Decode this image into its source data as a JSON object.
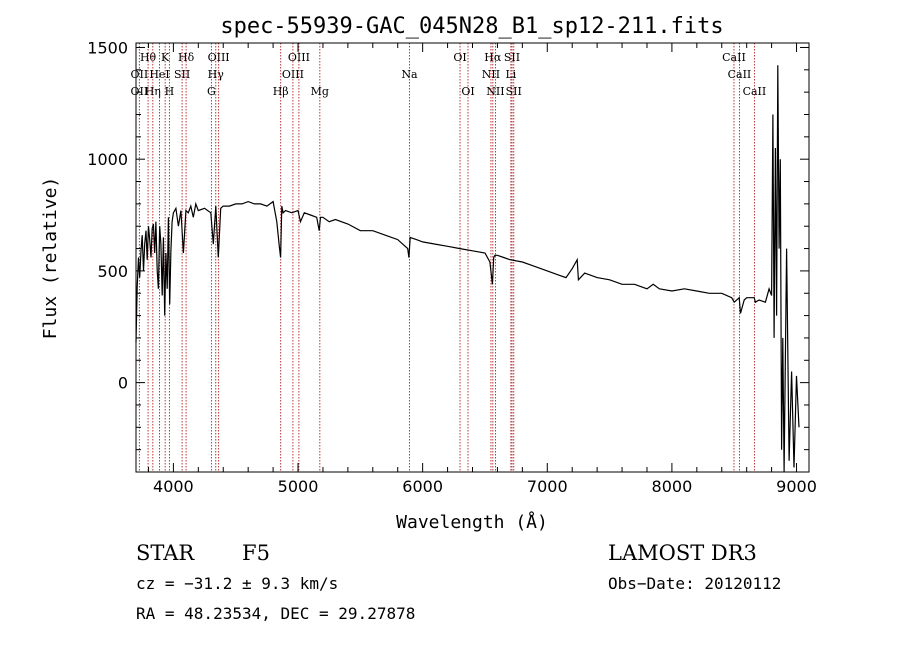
{
  "chart_data": {
    "type": "line",
    "title": "spec-55939-GAC_045N28_B1_sp12-211.fits",
    "xlabel": "Wavelength (Å)",
    "ylabel": "Flux (relative)",
    "xlim": [
      3700,
      9100
    ],
    "ylim": [
      -400,
      1520
    ],
    "xticks": [
      4000,
      5000,
      6000,
      7000,
      8000,
      9000
    ],
    "yticks": [
      0,
      500,
      1000,
      1500
    ],
    "grid": false,
    "series": [
      {
        "x": [
          3700,
          3710,
          3720,
          3730,
          3740,
          3750,
          3760,
          3770,
          3780,
          3790,
          3800,
          3810,
          3820,
          3830,
          3840,
          3850,
          3860,
          3870,
          3880,
          3890,
          3900,
          3910,
          3920,
          3930,
          3940,
          3950,
          3960,
          3970,
          3980,
          3990,
          4000,
          4020,
          4040,
          4060,
          4080,
          4100,
          4120,
          4140,
          4160,
          4180,
          4200,
          4250,
          4300,
          4320,
          4340,
          4360,
          4380,
          4400,
          4450,
          4500,
          4550,
          4600,
          4650,
          4700,
          4750,
          4800,
          4830,
          4850,
          4860,
          4870,
          4880,
          4900,
          4950,
          5000,
          5020,
          5050,
          5100,
          5150,
          5170,
          5180,
          5200,
          5250,
          5300,
          5400,
          5500,
          5600,
          5700,
          5800,
          5880,
          5890,
          5900,
          5950,
          6000,
          6100,
          6200,
          6300,
          6400,
          6500,
          6540,
          6560,
          6570,
          6580,
          6600,
          6650,
          6700,
          6800,
          6900,
          7000,
          7100,
          7150,
          7200,
          7240,
          7250,
          7300,
          7400,
          7500,
          7600,
          7700,
          7800,
          7850,
          7900,
          8000,
          8100,
          8200,
          8300,
          8400,
          8480,
          8500,
          8540,
          8550,
          8580,
          8600,
          8660,
          8670,
          8700,
          8750,
          8780,
          8800,
          8810,
          8820,
          8830,
          8840,
          8850,
          8860,
          8870,
          8880,
          8890,
          8900,
          8920,
          8940,
          8960,
          8980,
          9000,
          9020
        ],
        "y": [
          180,
          430,
          560,
          470,
          590,
          660,
          500,
          620,
          680,
          550,
          700,
          640,
          560,
          690,
          710,
          580,
          720,
          500,
          420,
          700,
          620,
          390,
          650,
          300,
          580,
          420,
          740,
          350,
          590,
          720,
          760,
          780,
          700,
          770,
          580,
          770,
          760,
          790,
          740,
          800,
          770,
          780,
          760,
          620,
          790,
          560,
          780,
          790,
          790,
          800,
          800,
          810,
          800,
          800,
          790,
          810,
          720,
          610,
          560,
          790,
          760,
          770,
          760,
          770,
          720,
          760,
          750,
          740,
          680,
          740,
          740,
          720,
          730,
          710,
          680,
          680,
          660,
          640,
          600,
          560,
          650,
          640,
          630,
          620,
          610,
          600,
          590,
          580,
          540,
          440,
          560,
          570,
          570,
          560,
          550,
          540,
          520,
          500,
          480,
          470,
          510,
          550,
          460,
          490,
          470,
          460,
          440,
          440,
          420,
          440,
          420,
          410,
          420,
          410,
          400,
          400,
          380,
          360,
          380,
          310,
          370,
          380,
          380,
          360,
          370,
          360,
          420,
          390,
          1200,
          200,
          1050,
          300,
          1420,
          600,
          1000,
          -300,
          200,
          -400,
          600,
          -350,
          50,
          -380,
          30,
          -200
        ],
        "color": "#000000"
      }
    ],
    "lines": [
      {
        "name": "OII",
        "x": 3727
      },
      {
        "name": "Hθ",
        "x": 3797
      },
      {
        "name": "Hη",
        "x": 3835
      },
      {
        "name": "HeI",
        "x": 3889
      },
      {
        "name": "K",
        "x": 3934
      },
      {
        "name": "H",
        "x": 3968
      },
      {
        "name": "SII",
        "x": 4070
      },
      {
        "name": "Hδ",
        "x": 4102
      },
      {
        "name": "G",
        "x": 4305
      },
      {
        "name": "Hγ",
        "x": 4340
      },
      {
        "name": "OIII",
        "x": 4363
      },
      {
        "name": "Hβ",
        "x": 4861
      },
      {
        "name": "OIII",
        "x": 4959
      },
      {
        "name": "OIII",
        "x": 5007
      },
      {
        "name": "Mg",
        "x": 5175
      },
      {
        "name": "Na",
        "x": 5894
      },
      {
        "name": "OI",
        "x": 6300
      },
      {
        "name": "OI",
        "x": 6364
      },
      {
        "name": "NII",
        "x": 6548
      },
      {
        "name": "Hα",
        "x": 6563
      },
      {
        "name": "NII",
        "x": 6584
      },
      {
        "name": "Li",
        "x": 6708
      },
      {
        "name": "SII",
        "x": 6717
      },
      {
        "name": "SII",
        "x": 6731
      },
      {
        "name": "CaII",
        "x": 8498
      },
      {
        "name": "CaII",
        "x": 8542
      },
      {
        "name": "CaII",
        "x": 8662
      }
    ],
    "line_labels": [
      {
        "text": "Hθ",
        "x": 3797,
        "row": 1
      },
      {
        "text": "K",
        "x": 3934,
        "row": 1
      },
      {
        "text": "Hδ",
        "x": 4102,
        "row": 1
      },
      {
        "text": "OIII",
        "x": 4363,
        "row": 1
      },
      {
        "text": "OIII",
        "x": 5007,
        "row": 1
      },
      {
        "text": "OI",
        "x": 6300,
        "row": 1
      },
      {
        "text": "Hα",
        "x": 6563,
        "row": 1
      },
      {
        "text": "SII",
        "x": 6717,
        "row": 1
      },
      {
        "text": "CaII",
        "x": 8498,
        "row": 1
      },
      {
        "text": "OII",
        "x": 3727,
        "row": 2
      },
      {
        "text": "HeI",
        "x": 3889,
        "row": 2
      },
      {
        "text": "SII",
        "x": 4070,
        "row": 2
      },
      {
        "text": "Hγ",
        "x": 4340,
        "row": 2
      },
      {
        "text": "OIII",
        "x": 4959,
        "row": 2
      },
      {
        "text": "Na",
        "x": 5894,
        "row": 2
      },
      {
        "text": "NII",
        "x": 6548,
        "row": 2
      },
      {
        "text": "Li",
        "x": 6708,
        "row": 2
      },
      {
        "text": "CaII",
        "x": 8542,
        "row": 2
      },
      {
        "text": "OII",
        "x": 3727,
        "row": 3
      },
      {
        "text": "Hη",
        "x": 3835,
        "row": 3
      },
      {
        "text": "H",
        "x": 3968,
        "row": 3
      },
      {
        "text": "G",
        "x": 4305,
        "row": 3
      },
      {
        "text": "Hβ",
        "x": 4861,
        "row": 3
      },
      {
        "text": "Mg",
        "x": 5175,
        "row": 3
      },
      {
        "text": "OI",
        "x": 6364,
        "row": 3
      },
      {
        "text": "NII",
        "x": 6584,
        "row": 3
      },
      {
        "text": "SII",
        "x": 6731,
        "row": 3
      },
      {
        "text": "CaII",
        "x": 8662,
        "row": 3
      }
    ]
  },
  "info": {
    "object_class": "STAR",
    "subclass": "F5",
    "survey": "LAMOST DR3",
    "cz": "cz = −31.2 ± 9.3 km/s",
    "obs_date": "Obs−Date: 20120112",
    "coords": "RA =  48.23534, DEC =  29.27878"
  },
  "colors": {
    "spectrum": "#000000",
    "line_markers": "#b22222",
    "axes": "#000000"
  }
}
